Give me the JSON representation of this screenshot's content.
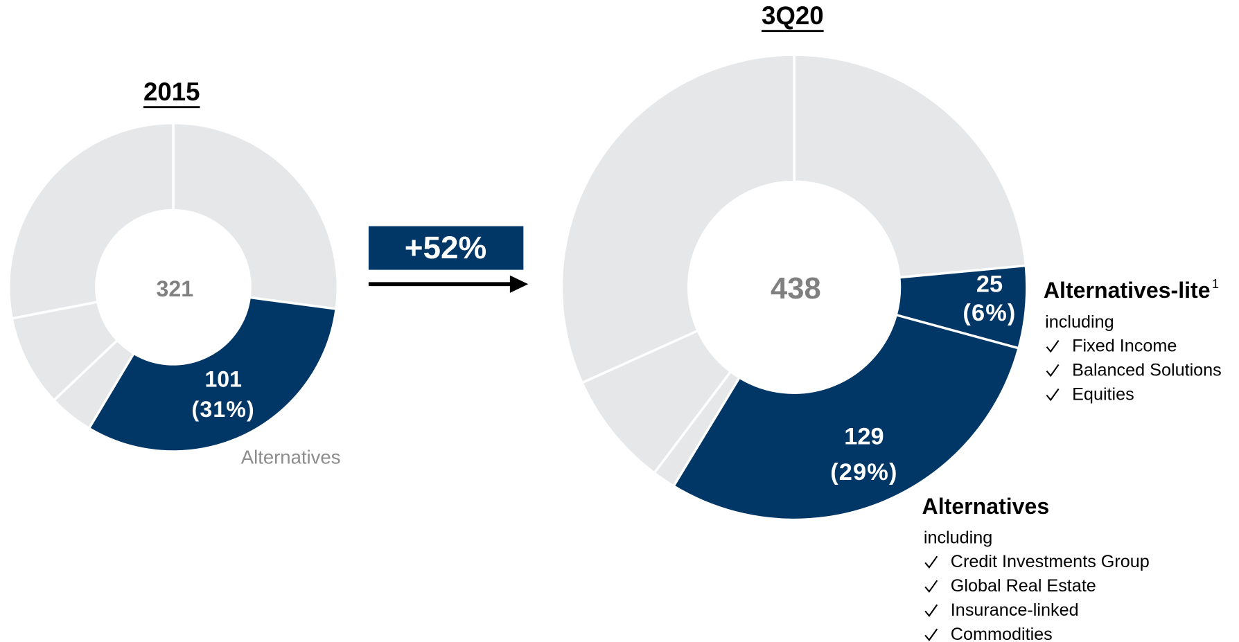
{
  "annotation": "+52%",
  "chart_data": [
    {
      "type": "donut",
      "title": "2015",
      "total": 321,
      "categories": [
        null,
        "Alternatives",
        null,
        null,
        null
      ],
      "values": [
        87,
        101,
        14,
        29,
        90
      ],
      "share_labels": [
        null,
        "(31%)",
        null,
        null,
        null
      ],
      "colors": [
        "#e6e7e8",
        "#013766",
        "#e6e7e8",
        "#e6e7e8",
        "#e6e7e8"
      ],
      "category_style": "muted"
    },
    {
      "type": "donut",
      "title": "3Q20",
      "total": 438,
      "categories": [
        null,
        "Alternatives-lite",
        "Alternatives",
        null,
        null,
        null
      ],
      "values": [
        103,
        25,
        129,
        7,
        35,
        139
      ],
      "share_labels": [
        null,
        "(6%)",
        "(29%)",
        null,
        null,
        null
      ],
      "footnote_marks": [
        null,
        "1",
        null,
        null,
        null,
        null
      ],
      "details": [
        null,
        {
          "intro": "including",
          "items": [
            "Fixed Income",
            "Balanced Solutions",
            "Equities"
          ]
        },
        {
          "intro": "including",
          "items": [
            "Credit Investments Group",
            "Global Real Estate",
            "Insurance-linked",
            "Commodities"
          ]
        },
        null,
        null,
        null
      ],
      "colors": [
        "#e6e7e8",
        "#013766",
        "#013766",
        "#e6e7e8",
        "#e6e7e8",
        "#e6e7e8"
      ],
      "category_style": "bold"
    }
  ]
}
